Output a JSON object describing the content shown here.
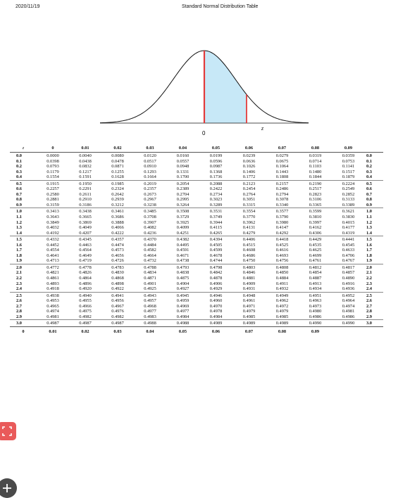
{
  "header": {
    "date": "2020/11/19",
    "title": "Standard Normal Distribution Table"
  },
  "figure": {
    "origin_label": "0",
    "z_label": "z",
    "shade_color": "#c7e8f7",
    "line_color": "#e23b3b"
  },
  "table": {
    "corner_label": "z",
    "columns": [
      "0",
      "0.01",
      "0.02",
      "0.03",
      "0.04",
      "0.05",
      "0.06",
      "0.07",
      "0.08",
      "0.09"
    ],
    "rows": [
      {
        "z": "0.0",
        "values": [
          "0.0000",
          "0.0040",
          "0.0080",
          "0.0120",
          "0.0160",
          "0.0199",
          "0.0239",
          "0.0279",
          "0.0319",
          "0.0359"
        ]
      },
      {
        "z": "0.1",
        "values": [
          "0.0398",
          "0.0438",
          "0.0478",
          "0.0517",
          "0.0557",
          "0.0596",
          "0.0636",
          "0.0675",
          "0.0714",
          "0.0753"
        ]
      },
      {
        "z": "0.2",
        "values": [
          "0.0793",
          "0.0832",
          "0.0871",
          "0.0910",
          "0.0948",
          "0.0987",
          "0.1026",
          "0.1064",
          "0.1103",
          "0.1141"
        ]
      },
      {
        "z": "0.3",
        "values": [
          "0.1179",
          "0.1217",
          "0.1255",
          "0.1293",
          "0.1331",
          "0.1368",
          "0.1406",
          "0.1443",
          "0.1480",
          "0.1517"
        ]
      },
      {
        "z": "0.4",
        "values": [
          "0.1554",
          "0.1591",
          "0.1628",
          "0.1664",
          "0.1700",
          "0.1736",
          "0.1772",
          "0.1808",
          "0.1844",
          "0.1879"
        ]
      },
      {
        "z": "0.5",
        "values": [
          "0.1915",
          "0.1950",
          "0.1985",
          "0.2019",
          "0.2054",
          "0.2088",
          "0.2123",
          "0.2157",
          "0.2190",
          "0.2224"
        ]
      },
      {
        "z": "0.6",
        "values": [
          "0.2257",
          "0.2291",
          "0.2324",
          "0.2357",
          "0.2389",
          "0.2422",
          "0.2454",
          "0.2486",
          "0.2517",
          "0.2549"
        ]
      },
      {
        "z": "0.7",
        "values": [
          "0.2580",
          "0.2611",
          "0.2642",
          "0.2673",
          "0.2704",
          "0.2734",
          "0.2764",
          "0.2794",
          "0.2823",
          "0.2852"
        ]
      },
      {
        "z": "0.8",
        "values": [
          "0.2881",
          "0.2910",
          "0.2939",
          "0.2967",
          "0.2995",
          "0.3023",
          "0.3051",
          "0.3078",
          "0.3106",
          "0.3133"
        ]
      },
      {
        "z": "0.9",
        "values": [
          "0.3159",
          "0.3186",
          "0.3212",
          "0.3238",
          "0.3264",
          "0.3289",
          "0.3315",
          "0.3340",
          "0.3365",
          "0.3389"
        ]
      },
      {
        "z": "1.0",
        "values": [
          "0.3413",
          "0.3438",
          "0.3461",
          "0.3485",
          "0.3508",
          "0.3531",
          "0.3554",
          "0.3577",
          "0.3599",
          "0.3621"
        ]
      },
      {
        "z": "1.1",
        "values": [
          "0.3643",
          "0.3665",
          "0.3686",
          "0.3708",
          "0.3729",
          "0.3749",
          "0.3770",
          "0.3790",
          "0.3810",
          "0.3830"
        ]
      },
      {
        "z": "1.2",
        "values": [
          "0.3849",
          "0.3869",
          "0.3888",
          "0.3907",
          "0.3925",
          "0.3944",
          "0.3962",
          "0.3980",
          "0.3997",
          "0.4015"
        ]
      },
      {
        "z": "1.3",
        "values": [
          "0.4032",
          "0.4049",
          "0.4066",
          "0.4082",
          "0.4099",
          "0.4115",
          "0.4131",
          "0.4147",
          "0.4162",
          "0.4177"
        ]
      },
      {
        "z": "1.4",
        "values": [
          "0.4192",
          "0.4207",
          "0.4222",
          "0.4236",
          "0.4251",
          "0.4265",
          "0.4279",
          "0.4292",
          "0.4306",
          "0.4319"
        ]
      },
      {
        "z": "1.5",
        "values": [
          "0.4332",
          "0.4345",
          "0.4357",
          "0.4370",
          "0.4382",
          "0.4394",
          "0.4406",
          "0.4418",
          "0.4429",
          "0.4441"
        ]
      },
      {
        "z": "1.6",
        "values": [
          "0.4452",
          "0.4463",
          "0.4474",
          "0.4484",
          "0.4495",
          "0.4505",
          "0.4515",
          "0.4525",
          "0.4535",
          "0.4545"
        ]
      },
      {
        "z": "1.7",
        "values": [
          "0.4554",
          "0.4564",
          "0.4573",
          "0.4582",
          "0.4591",
          "0.4599",
          "0.4608",
          "0.4616",
          "0.4625",
          "0.4633"
        ]
      },
      {
        "z": "1.8",
        "values": [
          "0.4641",
          "0.4649",
          "0.4656",
          "0.4664",
          "0.4671",
          "0.4678",
          "0.4686",
          "0.4693",
          "0.4699",
          "0.4706"
        ]
      },
      {
        "z": "1.9",
        "values": [
          "0.4713",
          "0.4719",
          "0.4726",
          "0.4732",
          "0.4738",
          "0.4744",
          "0.4750",
          "0.4756",
          "0.4761",
          "0.4767"
        ]
      },
      {
        "z": "2.0",
        "values": [
          "0.4772",
          "0.4778",
          "0.4783",
          "0.4788",
          "0.4793",
          "0.4798",
          "0.4803",
          "0.4808",
          "0.4812",
          "0.4817"
        ]
      },
      {
        "z": "2.1",
        "values": [
          "0.4821",
          "0.4826",
          "0.4830",
          "0.4834",
          "0.4838",
          "0.4842",
          "0.4846",
          "0.4850",
          "0.4854",
          "0.4857"
        ]
      },
      {
        "z": "2.2",
        "values": [
          "0.4861",
          "0.4864",
          "0.4868",
          "0.4871",
          "0.4875",
          "0.4878",
          "0.4881",
          "0.4884",
          "0.4887",
          "0.4890"
        ]
      },
      {
        "z": "2.3",
        "values": [
          "0.4893",
          "0.4896",
          "0.4898",
          "0.4901",
          "0.4904",
          "0.4906",
          "0.4909",
          "0.4911",
          "0.4913",
          "0.4916"
        ]
      },
      {
        "z": "2.4",
        "values": [
          "0.4918",
          "0.4920",
          "0.4922",
          "0.4925",
          "0.4927",
          "0.4929",
          "0.4931",
          "0.4932",
          "0.4934",
          "0.4936"
        ]
      },
      {
        "z": "2.5",
        "values": [
          "0.4938",
          "0.4940",
          "0.4941",
          "0.4943",
          "0.4945",
          "0.4946",
          "0.4948",
          "0.4949",
          "0.4951",
          "0.4952"
        ]
      },
      {
        "z": "2.6",
        "values": [
          "0.4953",
          "0.4955",
          "0.4956",
          "0.4957",
          "0.4959",
          "0.4960",
          "0.4961",
          "0.4962",
          "0.4963",
          "0.4964"
        ]
      },
      {
        "z": "2.7",
        "values": [
          "0.4965",
          "0.4966",
          "0.4967",
          "0.4968",
          "0.4969",
          "0.4970",
          "0.4971",
          "0.4972",
          "0.4973",
          "0.4974"
        ]
      },
      {
        "z": "2.8",
        "values": [
          "0.4974",
          "0.4975",
          "0.4976",
          "0.4977",
          "0.4977",
          "0.4978",
          "0.4979",
          "0.4979",
          "0.4980",
          "0.4981"
        ]
      },
      {
        "z": "2.9",
        "values": [
          "0.4981",
          "0.4982",
          "0.4982",
          "0.4983",
          "0.4984",
          "0.4984",
          "0.4985",
          "0.4985",
          "0.4986",
          "0.4986"
        ]
      },
      {
        "z": "3.0",
        "values": [
          "0.4987",
          "0.4987",
          "0.4987",
          "0.4988",
          "0.4988",
          "0.4989",
          "0.4989",
          "0.4989",
          "0.4990",
          "0.4990"
        ]
      }
    ]
  },
  "sidebar": {
    "fit_icon": "fit-screen-icon",
    "add_icon": "plus-icon"
  }
}
